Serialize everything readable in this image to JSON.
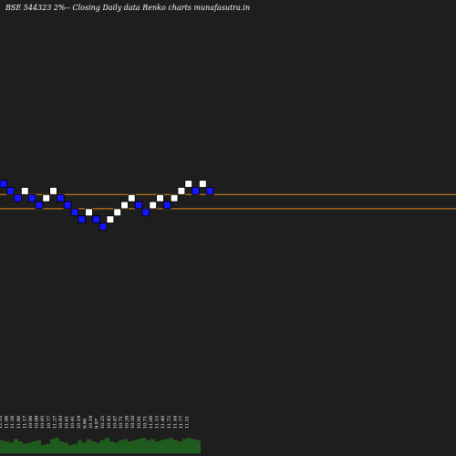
{
  "title": "BSE 544323 2%-- Closing Daily data  Renko  charts munafasutra.in",
  "colors": {
    "background": "#1e1e1e",
    "up_brick": "#ffffff",
    "down_brick": "#1515ff",
    "brick_border": "#000000",
    "reference_line": "#e08a1e",
    "volume": "#1f5b1f",
    "text": "#ffffff"
  },
  "chart_data": {
    "type": "renko",
    "title": "BSE 544323 2%-- Closing Daily data  Renko  charts munafasutra.in",
    "brick_size_label": "2%",
    "bricks": [
      {
        "level": 6,
        "dir": "down"
      },
      {
        "level": 5,
        "dir": "down"
      },
      {
        "level": 4,
        "dir": "down"
      },
      {
        "level": 5,
        "dir": "up"
      },
      {
        "level": 4,
        "dir": "down"
      },
      {
        "level": 3,
        "dir": "down"
      },
      {
        "level": 4,
        "dir": "up"
      },
      {
        "level": 5,
        "dir": "up"
      },
      {
        "level": 4,
        "dir": "down"
      },
      {
        "level": 3,
        "dir": "down"
      },
      {
        "level": 2,
        "dir": "down"
      },
      {
        "level": 1,
        "dir": "down"
      },
      {
        "level": 2,
        "dir": "up"
      },
      {
        "level": 1,
        "dir": "down"
      },
      {
        "level": 0,
        "dir": "down"
      },
      {
        "level": 1,
        "dir": "up"
      },
      {
        "level": 2,
        "dir": "up"
      },
      {
        "level": 3,
        "dir": "up"
      },
      {
        "level": 4,
        "dir": "up"
      },
      {
        "level": 3,
        "dir": "down"
      },
      {
        "level": 2,
        "dir": "down"
      },
      {
        "level": 3,
        "dir": "up"
      },
      {
        "level": 4,
        "dir": "up"
      },
      {
        "level": 3,
        "dir": "down"
      },
      {
        "level": 4,
        "dir": "up"
      },
      {
        "level": 5,
        "dir": "up"
      },
      {
        "level": 6,
        "dir": "up"
      },
      {
        "level": 5,
        "dir": "down"
      },
      {
        "level": 6,
        "dir": "up"
      },
      {
        "level": 5,
        "dir": "down"
      }
    ],
    "reference_lines": [
      5,
      3
    ],
    "x_tick_labels": [
      "12.10",
      "11.96",
      "11.56",
      "11.90",
      "11.17",
      "10.96",
      "10.99",
      "10.95",
      "10.77",
      "11.27",
      "10.93",
      "10.61",
      "10.41",
      "10.19",
      "9.96",
      "10.19",
      "9.97",
      "10.25",
      "10.43",
      "10.47",
      "10.71",
      "10.26",
      "10.50",
      "10.91",
      "10.71",
      "11.00",
      "11.15",
      "11.40",
      "11.72",
      "11.44",
      "11.77",
      "11.51"
    ],
    "volume": [
      0.55,
      0.5,
      0.45,
      0.6,
      0.5,
      0.4,
      0.45,
      0.5,
      0.55,
      0.35,
      0.4,
      0.6,
      0.65,
      0.5,
      0.45,
      0.35,
      0.4,
      0.55,
      0.45,
      0.6,
      0.5,
      0.45,
      0.55,
      0.65,
      0.5,
      0.45,
      0.55,
      0.6,
      0.5,
      0.55,
      0.6,
      0.65,
      0.55,
      0.6,
      0.5,
      0.55,
      0.6,
      0.65,
      0.55,
      0.5,
      0.6,
      0.65,
      0.6,
      0.55
    ]
  }
}
